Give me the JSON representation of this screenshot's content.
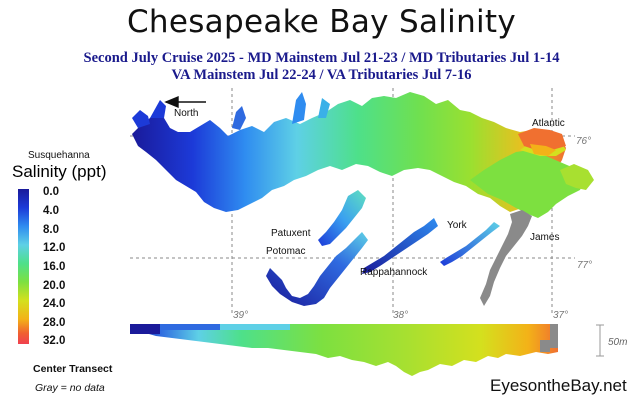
{
  "title": "Chesapeake Bay Salinity",
  "subtitle_line1": "Second July Cruise 2025 - MD Mainstem Jul 21-23 / MD Tributaries Jul 1-14",
  "subtitle_line2": "VA Mainstem Jul 22-24 /  VA Tributaries Jul 7-16",
  "legend": {
    "title": "Salinity (ppt)",
    "ticks": [
      "0.0",
      "4.0",
      "8.0",
      "12.0",
      "16.0",
      "20.0",
      "24.0",
      "28.0",
      "32.0"
    ],
    "colors": [
      "#1a1a9a",
      "#1c3ad8",
      "#2f8cf0",
      "#5ed0e6",
      "#4ee08a",
      "#7de040",
      "#d4e01e",
      "#f3b218",
      "#f06030",
      "#f04050"
    ]
  },
  "map_labels": {
    "north": "North",
    "susquehanna": "Susquehanna",
    "patuxent": "Patuxent",
    "potomac": "Potomac",
    "rappahannock": "Rappahannock",
    "york": "York",
    "james": "James",
    "atlantic": "Atlantic"
  },
  "grid_labels": {
    "lat_76": "76°",
    "lat_77": "77°",
    "lon_39": "39°",
    "lon_38": "38°",
    "lon_37": "37°"
  },
  "transect": {
    "label": "Center Transect",
    "scale_label": "50m"
  },
  "gray_note": "Gray = no data",
  "credit": "EyesontheBay.net"
}
